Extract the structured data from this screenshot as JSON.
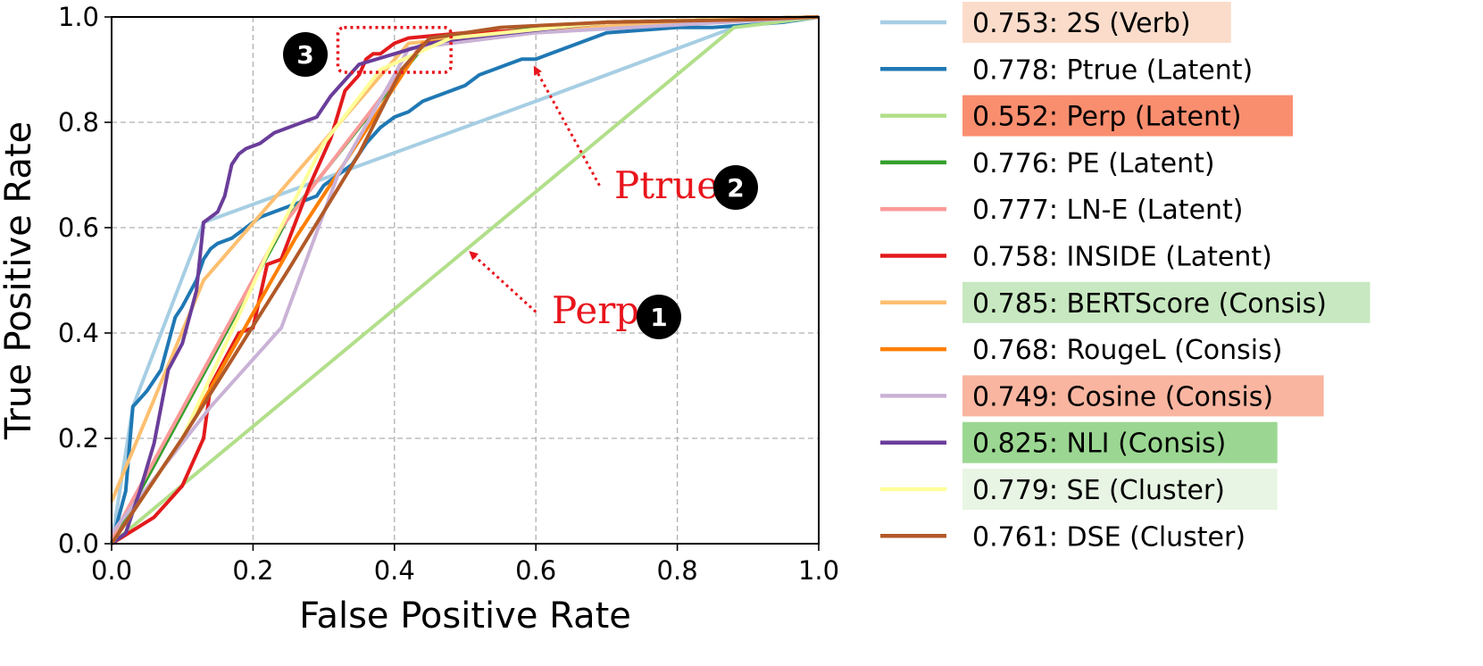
{
  "chart_data": {
    "type": "line",
    "xlabel": "False Positive Rate",
    "ylabel": "True Positive Rate",
    "xlim": [
      0.0,
      1.0
    ],
    "ylim": [
      0.0,
      1.0
    ],
    "xticks": [
      "0.0",
      "0.2",
      "0.4",
      "0.6",
      "0.8",
      "1.0"
    ],
    "yticks": [
      "0.0",
      "0.2",
      "0.4",
      "0.6",
      "0.8",
      "1.0"
    ],
    "grid": true,
    "legend_position": "right",
    "series": [
      {
        "name": "2S (Verb)",
        "label": "0.753: 2S (Verb)",
        "auc": 0.753,
        "color": "#a6cee3",
        "highlight": "#fbdccb",
        "x": [
          0,
          0.03,
          0.13,
          0.6,
          0.88,
          1
        ],
        "y": [
          0,
          0.26,
          0.61,
          0.84,
          0.98,
          1
        ]
      },
      {
        "name": "Ptrue (Latent)",
        "label": "0.778: Ptrue (Latent)",
        "auc": 0.778,
        "color": "#1f78b4",
        "highlight": "",
        "x": [
          0,
          0.02,
          0.03,
          0.05,
          0.07,
          0.09,
          0.1,
          0.12,
          0.13,
          0.14,
          0.15,
          0.17,
          0.19,
          0.21,
          0.23,
          0.25,
          0.27,
          0.29,
          0.3,
          0.32,
          0.34,
          0.36,
          0.38,
          0.4,
          0.42,
          0.44,
          0.46,
          0.48,
          0.5,
          0.52,
          0.54,
          0.56,
          0.58,
          0.6,
          0.62,
          0.64,
          0.66,
          0.68,
          0.7,
          0.75,
          0.8,
          0.85,
          0.9,
          0.95,
          1
        ],
        "y": [
          0,
          0.1,
          0.26,
          0.29,
          0.33,
          0.43,
          0.45,
          0.5,
          0.54,
          0.56,
          0.57,
          0.58,
          0.6,
          0.62,
          0.63,
          0.64,
          0.65,
          0.66,
          0.68,
          0.7,
          0.72,
          0.76,
          0.79,
          0.81,
          0.82,
          0.84,
          0.85,
          0.86,
          0.87,
          0.89,
          0.9,
          0.91,
          0.92,
          0.92,
          0.93,
          0.94,
          0.95,
          0.96,
          0.97,
          0.975,
          0.98,
          0.98,
          0.985,
          0.99,
          1
        ]
      },
      {
        "name": "Perp (Latent)",
        "label": "0.552: Perp (Latent)",
        "auc": 0.552,
        "color": "#b2df8a",
        "highlight": "#f98e6f",
        "x": [
          0,
          0.88,
          1
        ],
        "y": [
          0,
          0.98,
          1
        ]
      },
      {
        "name": "PE (Latent)",
        "label": "0.776: PE (Latent)",
        "auc": 0.776,
        "color": "#33a02c",
        "highlight": "",
        "x": [
          0,
          0.25,
          0.45,
          0.7,
          1
        ],
        "y": [
          0,
          0.62,
          0.96,
          0.99,
          1
        ]
      },
      {
        "name": "LN-E (Latent)",
        "label": "0.777: LN-E (Latent)",
        "auc": 0.777,
        "color": "#fb9a99",
        "highlight": "",
        "x": [
          0,
          0.24,
          0.44,
          0.7,
          1
        ],
        "y": [
          0.01,
          0.6,
          0.95,
          0.99,
          1
        ]
      },
      {
        "name": "INSIDE (Latent)",
        "label": "0.758: INSIDE (Latent)",
        "auc": 0.758,
        "color": "#e31a1c",
        "highlight": "",
        "x": [
          0,
          0.06,
          0.08,
          0.1,
          0.11,
          0.13,
          0.14,
          0.16,
          0.18,
          0.2,
          0.22,
          0.24,
          0.26,
          0.28,
          0.3,
          0.31,
          0.33,
          0.35,
          0.36,
          0.37,
          0.38,
          0.4,
          0.42,
          0.5,
          0.6,
          0.7,
          0.8,
          1
        ],
        "y": [
          0,
          0.05,
          0.08,
          0.11,
          0.14,
          0.2,
          0.3,
          0.35,
          0.4,
          0.41,
          0.53,
          0.54,
          0.61,
          0.68,
          0.74,
          0.77,
          0.86,
          0.89,
          0.92,
          0.93,
          0.93,
          0.95,
          0.96,
          0.97,
          0.975,
          0.98,
          0.99,
          1
        ]
      },
      {
        "name": "BERTScore (Consis)",
        "label": "0.785: BERTScore (Consis)",
        "auc": 0.785,
        "color": "#fdbf6f",
        "highlight": "#c7e8c0",
        "x": [
          0,
          0.13,
          0.42,
          0.6,
          0.8,
          1
        ],
        "y": [
          0.08,
          0.5,
          0.95,
          0.975,
          0.99,
          1
        ]
      },
      {
        "name": "RougeL (Consis)",
        "label": "0.768: RougeL (Consis)",
        "auc": 0.768,
        "color": "#ff7f00",
        "highlight": "",
        "x": [
          0,
          0.1,
          0.26,
          0.44,
          0.7,
          1
        ],
        "y": [
          0,
          0.2,
          0.58,
          0.95,
          0.99,
          1
        ]
      },
      {
        "name": "Cosine (Consis)",
        "label": "0.749: Cosine (Consis)",
        "auc": 0.749,
        "color": "#cab2d6",
        "highlight": "#f9b5a0",
        "x": [
          0,
          0.14,
          0.24,
          0.32,
          0.4,
          0.42,
          0.6,
          1
        ],
        "y": [
          0.02,
          0.26,
          0.41,
          0.7,
          0.89,
          0.94,
          0.97,
          1
        ]
      },
      {
        "name": "NLI (Consis)",
        "label": "0.825: NLI (Consis)",
        "auc": 0.825,
        "color": "#6a3d9a",
        "highlight": "#9bd792",
        "x": [
          0,
          0.02,
          0.04,
          0.06,
          0.08,
          0.1,
          0.11,
          0.12,
          0.13,
          0.15,
          0.16,
          0.17,
          0.18,
          0.19,
          0.21,
          0.23,
          0.25,
          0.27,
          0.29,
          0.31,
          0.31,
          0.35,
          0.4,
          0.45,
          0.5,
          0.6,
          0.7,
          1
        ],
        "y": [
          0,
          0.02,
          0.1,
          0.19,
          0.33,
          0.38,
          0.43,
          0.48,
          0.61,
          0.63,
          0.66,
          0.72,
          0.74,
          0.75,
          0.76,
          0.78,
          0.79,
          0.8,
          0.81,
          0.85,
          0.85,
          0.91,
          0.93,
          0.95,
          0.96,
          0.975,
          0.99,
          1
        ]
      },
      {
        "name": "SE (Cluster)",
        "label": "0.779: SE (Cluster)",
        "auc": 0.779,
        "color": "#ffff99",
        "highlight": "#e8f5e4",
        "x": [
          0,
          0.1,
          0.22,
          0.3,
          0.38,
          0.48,
          0.7,
          1
        ],
        "y": [
          0,
          0.2,
          0.55,
          0.76,
          0.9,
          0.96,
          0.99,
          1
        ]
      },
      {
        "name": "DSE (Cluster)",
        "label": "0.761: DSE (Cluster)",
        "auc": 0.761,
        "color": "#b15928",
        "highlight": "",
        "x": [
          0,
          0.1,
          0.25,
          0.35,
          0.41,
          0.45,
          0.55,
          0.7,
          0.9,
          1
        ],
        "y": [
          0,
          0.2,
          0.52,
          0.74,
          0.9,
          0.96,
          0.98,
          0.99,
          0.995,
          1
        ]
      }
    ],
    "annotations": [
      {
        "text": "Perp",
        "badge": "1",
        "from": [
          0.6,
          0.44
        ],
        "to": [
          0.51,
          0.55
        ]
      },
      {
        "text": "Ptrue",
        "badge": "2",
        "from": [
          0.69,
          0.68
        ],
        "to": [
          0.6,
          0.9
        ]
      },
      {
        "text": "",
        "badge": "3",
        "box": [
          0.32,
          0.895,
          0.48,
          0.98
        ]
      }
    ]
  }
}
